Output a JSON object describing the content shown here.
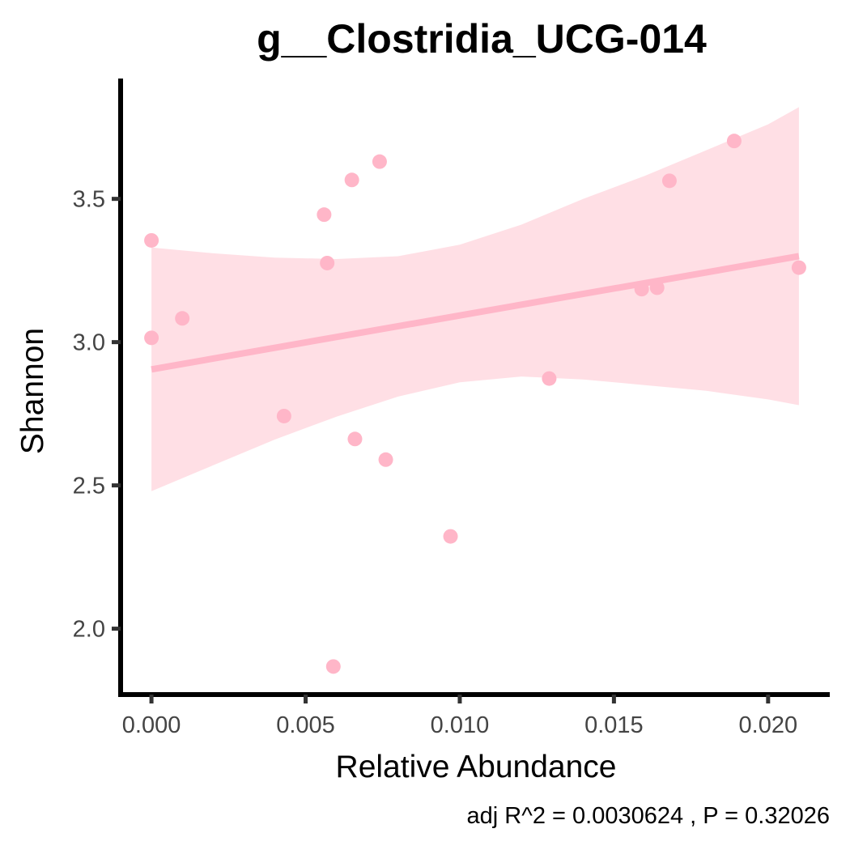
{
  "chart_data": {
    "type": "scatter",
    "title": "g__Clostridia_UCG-014",
    "xlabel": "Relative Abundance",
    "ylabel": "Shannon",
    "caption": "adj R^2 =  0.0030624 , P = 0.32026",
    "xlim": [
      -0.001,
      0.022
    ],
    "ylim": [
      1.77,
      3.92
    ],
    "x_ticks": [
      0.0,
      0.005,
      0.01,
      0.015,
      0.02
    ],
    "x_tick_labels": [
      "0.000",
      "0.005",
      "0.010",
      "0.015",
      "0.020"
    ],
    "y_ticks": [
      2.0,
      2.5,
      3.0,
      3.5
    ],
    "y_tick_labels": [
      "2.0",
      "2.5",
      "3.0",
      "3.5"
    ],
    "grid": false,
    "colors": {
      "points": "#ffb6c8",
      "fit_line": "#ffb6c8",
      "ribbon": "#ffc0cb"
    },
    "points": [
      {
        "x": 0.0,
        "y": 3.355
      },
      {
        "x": 0.0,
        "y": 3.015
      },
      {
        "x": 0.001,
        "y": 3.083
      },
      {
        "x": 0.0043,
        "y": 2.742
      },
      {
        "x": 0.0056,
        "y": 3.445
      },
      {
        "x": 0.0057,
        "y": 3.276
      },
      {
        "x": 0.0059,
        "y": 1.868
      },
      {
        "x": 0.0065,
        "y": 3.566
      },
      {
        "x": 0.0066,
        "y": 2.662
      },
      {
        "x": 0.0074,
        "y": 3.63
      },
      {
        "x": 0.0076,
        "y": 2.59
      },
      {
        "x": 0.0097,
        "y": 2.322
      },
      {
        "x": 0.0129,
        "y": 2.873
      },
      {
        "x": 0.0159,
        "y": 3.185
      },
      {
        "x": 0.0164,
        "y": 3.19
      },
      {
        "x": 0.0168,
        "y": 3.563
      },
      {
        "x": 0.0189,
        "y": 3.702
      },
      {
        "x": 0.021,
        "y": 3.26
      }
    ],
    "fit": {
      "x": [
        0.0,
        0.021
      ],
      "y": [
        2.905,
        3.3
      ]
    },
    "ribbon": {
      "x": [
        0.0,
        0.002,
        0.004,
        0.006,
        0.008,
        0.01,
        0.012,
        0.014,
        0.016,
        0.018,
        0.02,
        0.021
      ],
      "upper": [
        3.33,
        3.31,
        3.295,
        3.29,
        3.3,
        3.34,
        3.41,
        3.5,
        3.58,
        3.67,
        3.76,
        3.82
      ],
      "lower": [
        2.48,
        2.57,
        2.66,
        2.74,
        2.81,
        2.86,
        2.88,
        2.87,
        2.85,
        2.83,
        2.8,
        2.78
      ]
    }
  }
}
